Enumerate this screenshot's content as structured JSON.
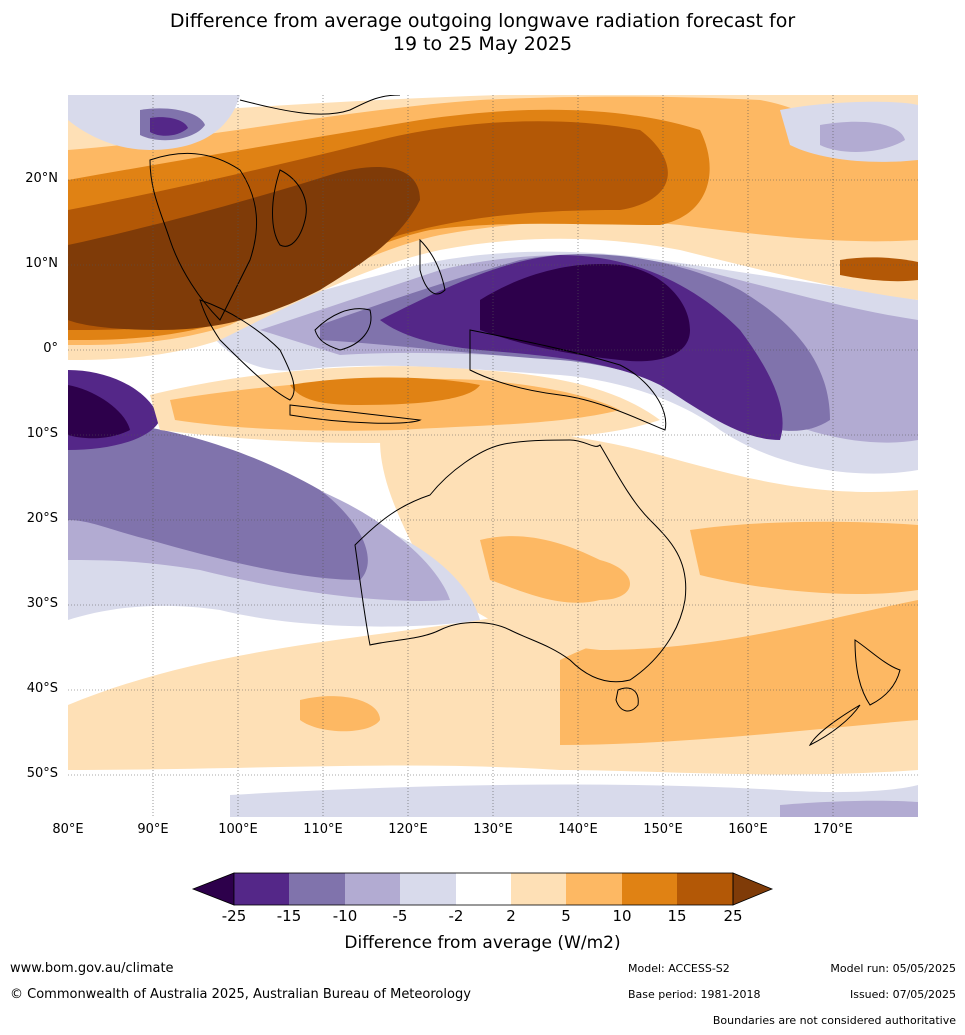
{
  "title_line1": "Difference from average outgoing longwave radiation forecast for",
  "title_line2": "19 to 25 May 2025",
  "map": {
    "lon_range": [
      80,
      180
    ],
    "lat_range": [
      -55,
      30
    ],
    "lat_ticks": [
      "20°N",
      "10°N",
      "0°",
      "10°S",
      "20°S",
      "30°S",
      "40°S",
      "50°S"
    ],
    "lon_ticks": [
      "80°E",
      "90°E",
      "100°E",
      "110°E",
      "120°E",
      "130°E",
      "140°E",
      "150°E",
      "160°E",
      "170°E"
    ],
    "grid": true
  },
  "colorbar": {
    "labels": [
      "-25",
      "-15",
      "-10",
      "-5",
      "-2",
      "2",
      "5",
      "10",
      "15",
      "25"
    ],
    "colors": [
      "#2d004b",
      "#542788",
      "#8073ac",
      "#b2abd2",
      "#d8daeb",
      "#ffffff",
      "#fee0b6",
      "#fdb863",
      "#e08214",
      "#b35806",
      "#7f3b08"
    ],
    "title": "Difference from average (W/m2)"
  },
  "footer": {
    "url": "www.bom.gov.au/climate",
    "copyright": "© Commonwealth of Australia 2025, Australian Bureau of Meteorology",
    "model": "Model: ACCESS-S2",
    "base_period": "Base period: 1981-2018",
    "model_run": "Model run: 05/05/2025",
    "issued": "Issued: 07/05/2025",
    "disclaimer": "Boundaries are not considered authoritative"
  }
}
